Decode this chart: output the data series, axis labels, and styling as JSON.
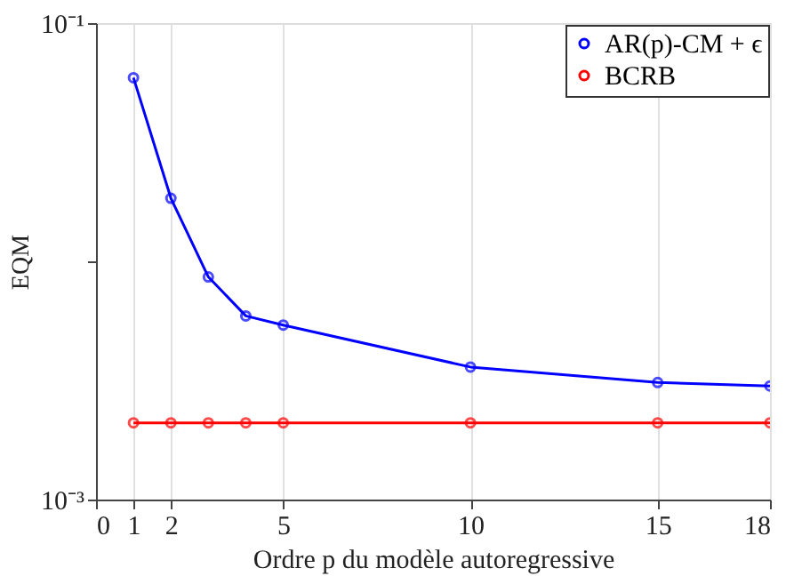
{
  "chart_data": {
    "type": "line",
    "xlabel": "Ordre p du modèle autoregressive",
    "ylabel": "EQM",
    "series": [
      {
        "name": "AR(p)-CM + ϵ",
        "color": "#0000ff",
        "x": [
          1,
          2,
          3,
          4,
          5,
          10,
          15,
          18
        ],
        "values": [
          0.059,
          0.0184,
          0.0086,
          0.0059,
          0.0054,
          0.0036,
          0.0031,
          0.003
        ]
      },
      {
        "name": "BCRB",
        "color": "#ff0000",
        "x": [
          1,
          2,
          3,
          4,
          5,
          10,
          15,
          18
        ],
        "values": [
          0.0021,
          0.0021,
          0.0021,
          0.0021,
          0.0021,
          0.0021,
          0.0021,
          0.0021
        ]
      }
    ],
    "xlim": [
      0,
      18
    ],
    "xticks": [
      0,
      1,
      2,
      5,
      10,
      15,
      18
    ],
    "ylim": [
      0.001,
      0.1
    ],
    "yticks": [
      {
        "value": 0.1,
        "label": "10⁻¹"
      },
      {
        "value": 0.01,
        "label": null
      },
      {
        "value": 0.001,
        "label": "10⁻³"
      }
    ],
    "log": "y",
    "grid": "x",
    "legend": "top right",
    "marker": "circle",
    "line_style": "solid"
  }
}
